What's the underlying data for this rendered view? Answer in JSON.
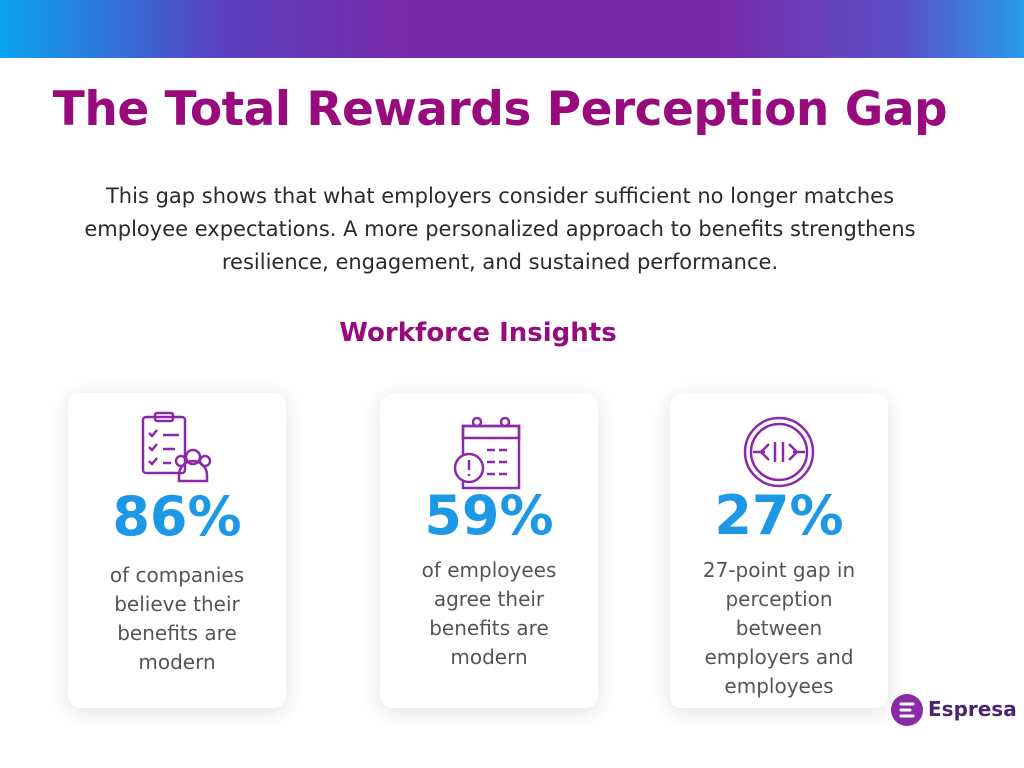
{
  "header": {
    "title": "The Total Rewards Perception Gap",
    "subtitle": "This gap shows that what employers consider sufficient no longer matches employee expectations. A more personalized approach to benefits strengthens resilience, engagement, and sustained performance."
  },
  "section_title": "Workforce Insights",
  "cards": [
    {
      "stat": "86%",
      "text": "of companies believe their benefits are modern"
    },
    {
      "stat": "59%",
      "text": "of employees agree their benefits are modern"
    },
    {
      "stat": "27%",
      "text": "27-point gap in perception between employers and employees"
    }
  ],
  "logo": "Espresa"
}
